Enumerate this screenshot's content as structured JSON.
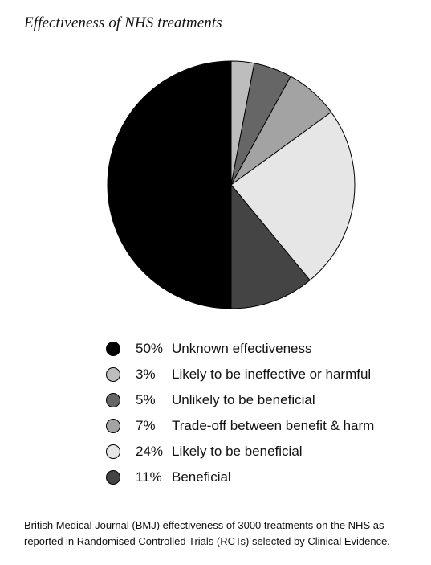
{
  "chart_data": {
    "type": "pie",
    "title": "Effectiveness of NHS treatments",
    "slices": [
      {
        "label": "Unknown effectiveness",
        "pct_label": "50%",
        "value": 50,
        "color": "#000000"
      },
      {
        "label": "Likely to be ineffective or harmful",
        "pct_label": "3%",
        "value": 3,
        "color": "#bdbdbd"
      },
      {
        "label": "Unlikely to be beneficial",
        "pct_label": "5%",
        "value": 5,
        "color": "#666666"
      },
      {
        "label": "Trade-off between benefit & harm",
        "pct_label": "7%",
        "value": 7,
        "color": "#a3a3a3"
      },
      {
        "label": "Likely to be beneficial",
        "pct_label": "24%",
        "value": 24,
        "color": "#e6e6e6"
      },
      {
        "label": "Beneficial",
        "pct_label": "11%",
        "value": 11,
        "color": "#444444"
      }
    ],
    "draw_order": [
      1,
      2,
      3,
      4,
      5,
      0
    ],
    "start_angle_deg": 0,
    "direction": "clockwise",
    "legend_position": "bottom"
  },
  "caption": {
    "line1": "British Medical Journal (BMJ) effectiveness of 3000 treatments on the NHS as",
    "line2": "reported in Randomised Controlled Trials (RCTs) selected by Clinical Evidence."
  }
}
